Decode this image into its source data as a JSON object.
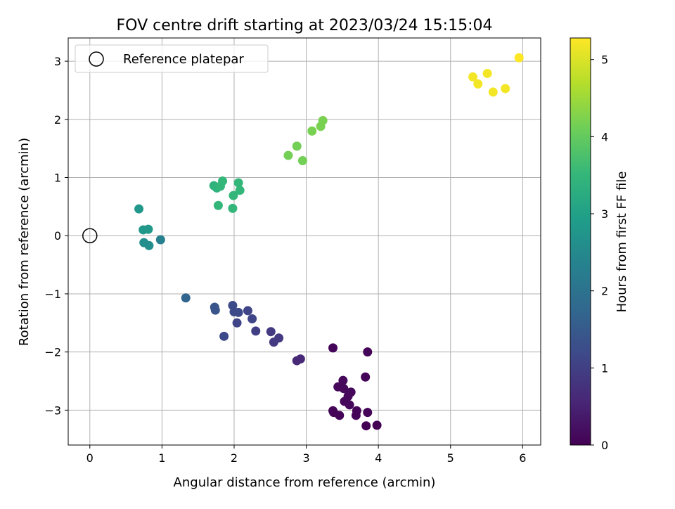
{
  "chart_data": {
    "type": "scatter",
    "title": "FOV centre drift starting at 2023/03/24 15:15:04",
    "xlabel": "Angular distance from reference (arcmin)",
    "ylabel": "Rotation from reference (arcmin)",
    "xlim": [
      -0.3,
      6.25
    ],
    "ylim": [
      -3.6,
      3.4
    ],
    "xticks": [
      "0",
      "1",
      "2",
      "3",
      "4",
      "5",
      "6"
    ],
    "yticks": [
      "3",
      "2",
      "1",
      "0",
      "−1",
      "−2",
      "−3"
    ],
    "grid": true,
    "legend": {
      "placement": "top-left",
      "entries": [
        "Reference platepar"
      ]
    },
    "reference_point": {
      "x": 0,
      "y": 0
    },
    "colorbar": {
      "label": "Hours from first FF file",
      "colormap": "viridis",
      "range": [
        0,
        5.28
      ],
      "ticks": [
        "0",
        "1",
        "2",
        "3",
        "4",
        "5"
      ]
    },
    "colors": {
      "viridis": [
        "#440154",
        "#482878",
        "#3e4989",
        "#31688e",
        "#26828e",
        "#1f9e89",
        "#35b779",
        "#6ece58",
        "#b5de2b",
        "#fde725"
      ],
      "grid": "#b0b0b0"
    },
    "points": [
      {
        "x": 3.37,
        "y": -1.93,
        "h": 0.05
      },
      {
        "x": 3.85,
        "y": -2.0,
        "h": 0.05
      },
      {
        "x": 3.82,
        "y": -2.43,
        "h": 0.05
      },
      {
        "x": 3.44,
        "y": -2.6,
        "h": 0.1
      },
      {
        "x": 3.51,
        "y": -2.49,
        "h": 0.1
      },
      {
        "x": 3.52,
        "y": -2.63,
        "h": 0.1
      },
      {
        "x": 3.62,
        "y": -2.69,
        "h": 0.1
      },
      {
        "x": 3.58,
        "y": -2.76,
        "h": 0.1
      },
      {
        "x": 3.53,
        "y": -2.85,
        "h": 0.1
      },
      {
        "x": 3.6,
        "y": -2.91,
        "h": 0.1
      },
      {
        "x": 3.37,
        "y": -3.01,
        "h": 0.05
      },
      {
        "x": 3.38,
        "y": -3.04,
        "h": 0.05
      },
      {
        "x": 3.46,
        "y": -3.09,
        "h": 0.05
      },
      {
        "x": 3.7,
        "y": -3.01,
        "h": 0.05
      },
      {
        "x": 3.69,
        "y": -3.09,
        "h": 0.05
      },
      {
        "x": 3.85,
        "y": -3.04,
        "h": 0.05
      },
      {
        "x": 3.83,
        "y": -3.27,
        "h": 0.0
      },
      {
        "x": 3.98,
        "y": -3.26,
        "h": 0.0
      },
      {
        "x": 2.87,
        "y": -2.15,
        "h": 0.6
      },
      {
        "x": 2.92,
        "y": -2.12,
        "h": 0.6
      },
      {
        "x": 2.51,
        "y": -1.65,
        "h": 0.9
      },
      {
        "x": 2.62,
        "y": -1.76,
        "h": 0.9
      },
      {
        "x": 2.55,
        "y": -1.83,
        "h": 0.9
      },
      {
        "x": 2.3,
        "y": -1.64,
        "h": 1.0
      },
      {
        "x": 2.25,
        "y": -1.43,
        "h": 1.1
      },
      {
        "x": 2.19,
        "y": -1.29,
        "h": 1.1
      },
      {
        "x": 2.04,
        "y": -1.5,
        "h": 1.1
      },
      {
        "x": 1.98,
        "y": -1.2,
        "h": 1.2
      },
      {
        "x": 2.0,
        "y": -1.31,
        "h": 1.2
      },
      {
        "x": 2.06,
        "y": -1.32,
        "h": 1.2
      },
      {
        "x": 1.86,
        "y": -1.73,
        "h": 1.2
      },
      {
        "x": 1.73,
        "y": -1.23,
        "h": 1.4
      },
      {
        "x": 1.74,
        "y": -1.28,
        "h": 1.4
      },
      {
        "x": 1.33,
        "y": -1.07,
        "h": 1.7
      },
      {
        "x": 0.98,
        "y": -0.07,
        "h": 2.3
      },
      {
        "x": 0.68,
        "y": 0.46,
        "h": 2.8
      },
      {
        "x": 0.74,
        "y": 0.1,
        "h": 2.8
      },
      {
        "x": 0.81,
        "y": 0.11,
        "h": 2.8
      },
      {
        "x": 0.75,
        "y": -0.12,
        "h": 2.6
      },
      {
        "x": 0.82,
        "y": -0.17,
        "h": 2.6
      },
      {
        "x": 1.72,
        "y": 0.86,
        "h": 3.4
      },
      {
        "x": 1.76,
        "y": 0.82,
        "h": 3.4
      },
      {
        "x": 1.84,
        "y": 0.94,
        "h": 3.5
      },
      {
        "x": 1.81,
        "y": 0.85,
        "h": 3.5
      },
      {
        "x": 2.06,
        "y": 0.91,
        "h": 3.5
      },
      {
        "x": 2.08,
        "y": 0.78,
        "h": 3.5
      },
      {
        "x": 1.99,
        "y": 0.69,
        "h": 3.5
      },
      {
        "x": 1.78,
        "y": 0.52,
        "h": 3.5
      },
      {
        "x": 1.98,
        "y": 0.47,
        "h": 3.5
      },
      {
        "x": 2.75,
        "y": 1.38,
        "h": 4.15
      },
      {
        "x": 2.87,
        "y": 1.54,
        "h": 4.15
      },
      {
        "x": 2.95,
        "y": 1.29,
        "h": 4.15
      },
      {
        "x": 3.08,
        "y": 1.8,
        "h": 4.2
      },
      {
        "x": 3.2,
        "y": 1.88,
        "h": 4.2
      },
      {
        "x": 3.23,
        "y": 1.98,
        "h": 4.2
      },
      {
        "x": 5.31,
        "y": 2.73,
        "h": 5.2
      },
      {
        "x": 5.38,
        "y": 2.61,
        "h": 5.2
      },
      {
        "x": 5.51,
        "y": 2.79,
        "h": 5.2
      },
      {
        "x": 5.59,
        "y": 2.47,
        "h": 5.2
      },
      {
        "x": 5.76,
        "y": 2.53,
        "h": 5.2
      },
      {
        "x": 5.95,
        "y": 3.06,
        "h": 5.28
      }
    ]
  }
}
